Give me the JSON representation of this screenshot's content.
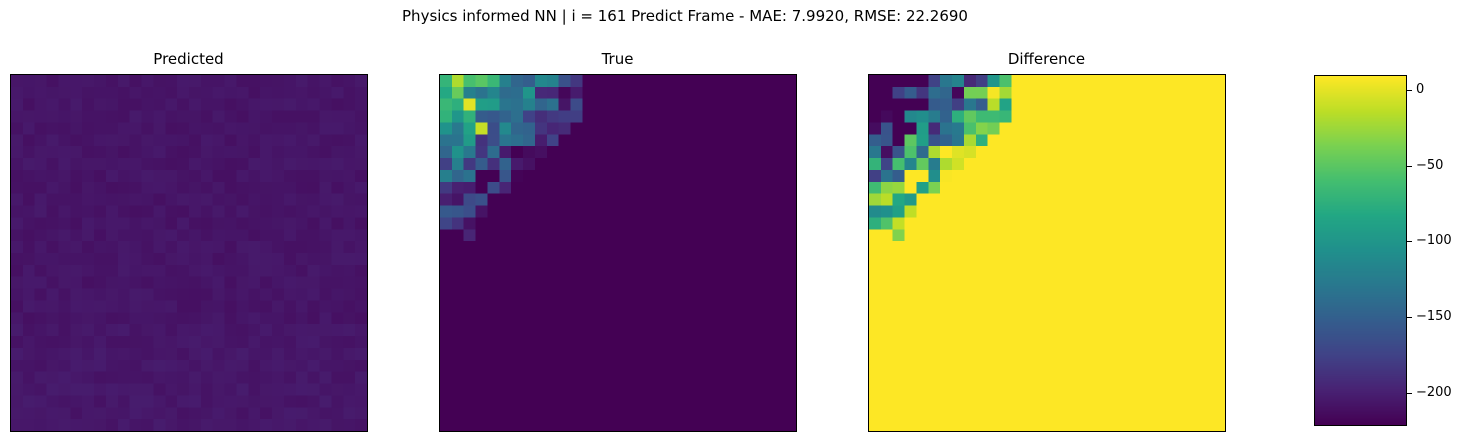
{
  "figure": {
    "suptitle": "Physics informed NN | i = 161 Predict Frame - MAE: 7.9920, RMSE: 22.2690"
  },
  "panels": [
    {
      "title": "Predicted"
    },
    {
      "title": "True"
    },
    {
      "title": "Difference"
    }
  ],
  "colorbar": {
    "colormap": "viridis",
    "vmin": -222,
    "vmax": 10,
    "ticks": [
      {
        "value": 0,
        "label": "0"
      },
      {
        "value": -50,
        "label": "−50"
      },
      {
        "value": -100,
        "label": "−100"
      },
      {
        "value": -150,
        "label": "−150"
      },
      {
        "value": -200,
        "label": "−200"
      }
    ]
  },
  "chart_data": [
    {
      "type": "heatmap",
      "title": "Predicted",
      "grid_size": [
        30,
        30
      ],
      "colormap": "viridis",
      "clim": [
        -222,
        10
      ],
      "description_values": {
        "typical": -210,
        "range": [
          -214,
          -204
        ]
      }
    },
    {
      "type": "heatmap",
      "title": "True",
      "grid_size": [
        30,
        30
      ],
      "colormap": "viridis",
      "clim": [
        -222,
        10
      ],
      "background_value": -222,
      "nonzero_region": "top-left corner",
      "peak_value": 0
    },
    {
      "type": "heatmap",
      "title": "Difference",
      "grid_size": [
        30,
        30
      ],
      "colormap": "viridis",
      "clim": [
        -222,
        10
      ],
      "typical": 5,
      "min_value": -222
    }
  ]
}
